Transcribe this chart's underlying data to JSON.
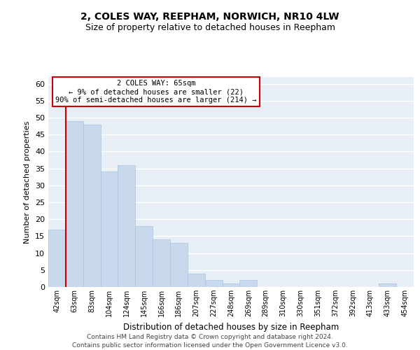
{
  "title": "2, COLES WAY, REEPHAM, NORWICH, NR10 4LW",
  "subtitle": "Size of property relative to detached houses in Reepham",
  "xlabel": "Distribution of detached houses by size in Reepham",
  "ylabel": "Number of detached properties",
  "bar_color": "#c8d9ed",
  "bar_edge_color": "#a8c4dc",
  "bins": [
    "42sqm",
    "63sqm",
    "83sqm",
    "104sqm",
    "124sqm",
    "145sqm",
    "166sqm",
    "186sqm",
    "207sqm",
    "227sqm",
    "248sqm",
    "269sqm",
    "289sqm",
    "310sqm",
    "330sqm",
    "351sqm",
    "372sqm",
    "392sqm",
    "413sqm",
    "433sqm",
    "454sqm"
  ],
  "values": [
    17,
    49,
    48,
    34,
    36,
    18,
    14,
    13,
    4,
    2,
    1,
    2,
    0,
    0,
    0,
    0,
    0,
    0,
    0,
    1,
    0
  ],
  "ylim": [
    0,
    62
  ],
  "yticks": [
    0,
    5,
    10,
    15,
    20,
    25,
    30,
    35,
    40,
    45,
    50,
    55,
    60
  ],
  "property_line_bin_index": 1,
  "annotation_title": "2 COLES WAY: 65sqm",
  "annotation_line1": "← 9% of detached houses are smaller (22)",
  "annotation_line2": "90% of semi-detached houses are larger (214) →",
  "footer1": "Contains HM Land Registry data © Crown copyright and database right 2024.",
  "footer2": "Contains public sector information licensed under the Open Government Licence v3.0.",
  "background_color": "#ffffff",
  "plot_bg_color": "#e8eef5",
  "grid_color": "#ffffff",
  "annotation_box_facecolor": "#ffffff",
  "annotation_box_edgecolor": "#cc0000",
  "property_line_color": "#cc0000",
  "title_fontsize": 10,
  "subtitle_fontsize": 9,
  "ylabel_fontsize": 8,
  "xlabel_fontsize": 8.5,
  "footer_fontsize": 6.5,
  "ytick_fontsize": 8,
  "xtick_fontsize": 7
}
